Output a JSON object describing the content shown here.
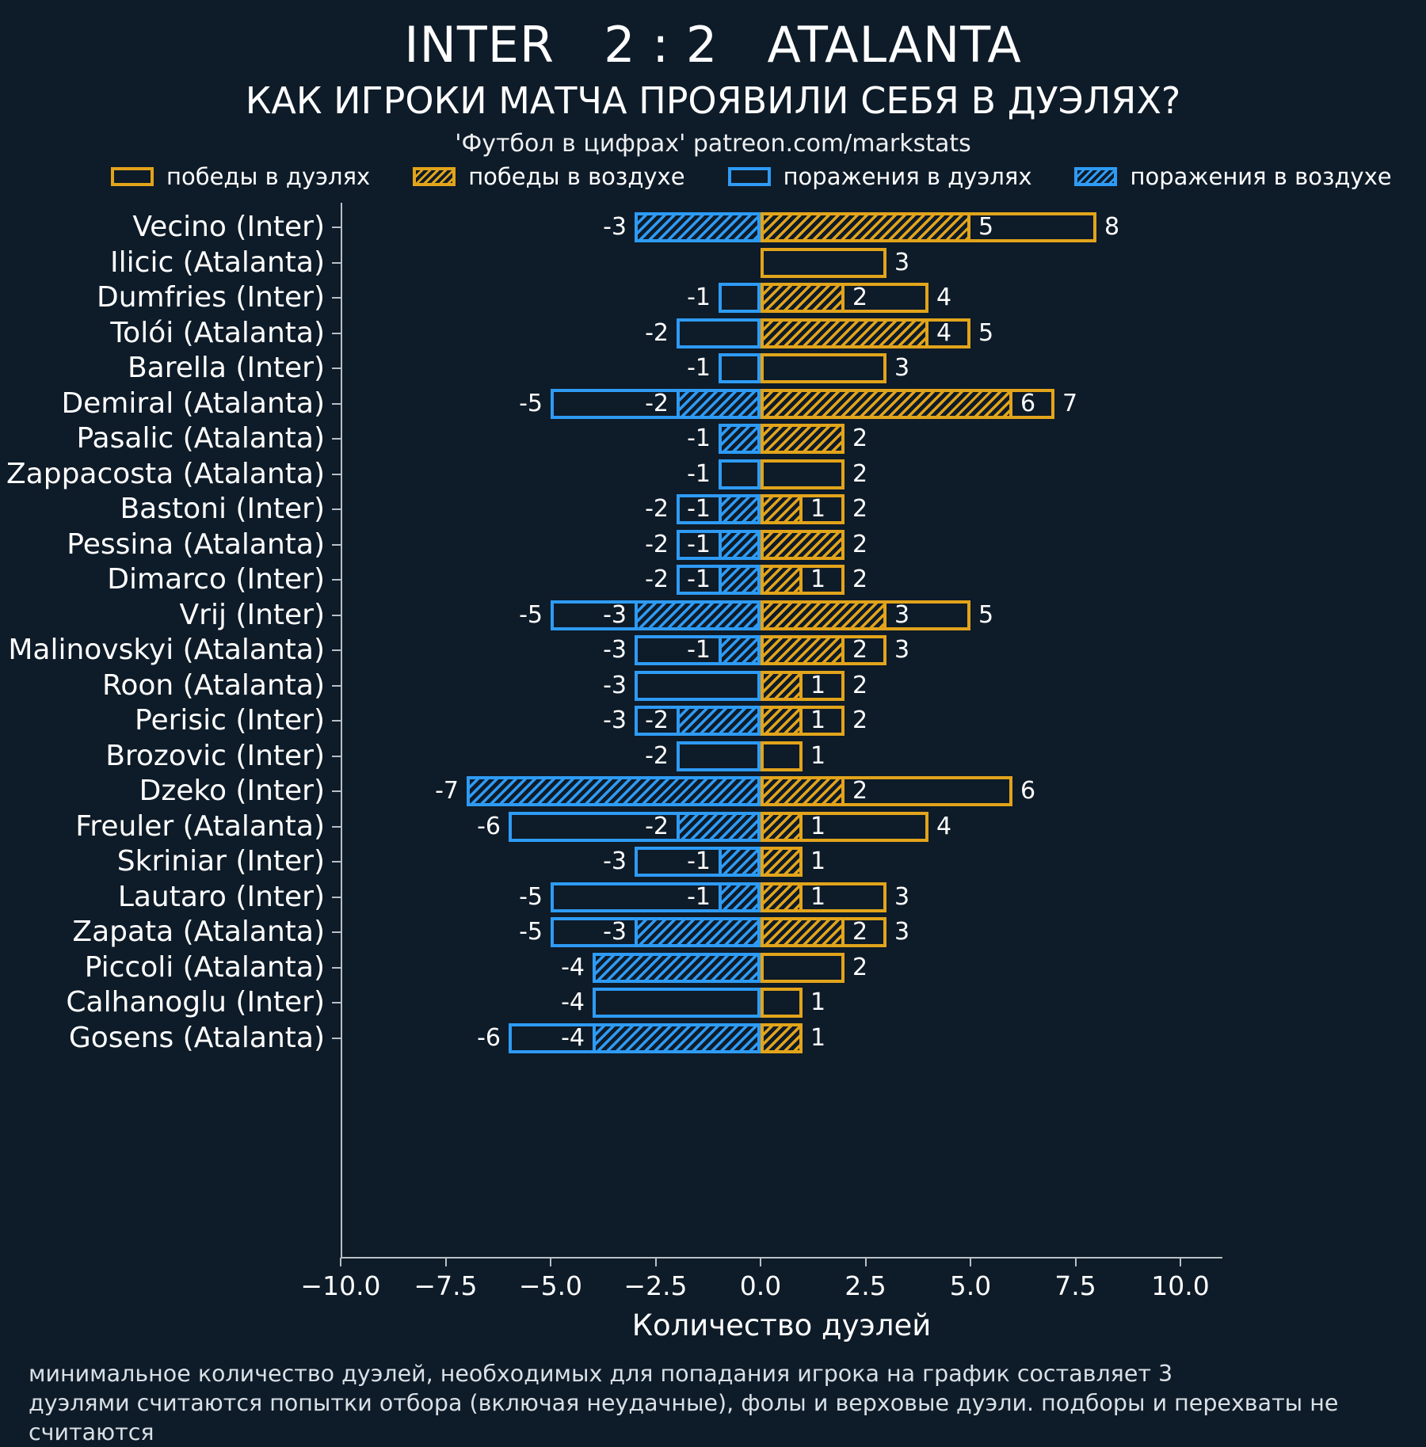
{
  "header": {
    "title": "INTER   2 : 2   ATALANTA",
    "subtitle": "КАК ИГРОКИ МАТЧА ПРОЯВИЛИ СЕБЯ В ДУЭЛЯХ?",
    "credit": "'Футбол в цифрах' patreon.com/markstats"
  },
  "legend": [
    {
      "label": "победы в дуэлях",
      "style": "win-solid"
    },
    {
      "label": "победы в воздухе",
      "style": "win-hatch"
    },
    {
      "label": "поражения в дуэлях",
      "style": "loss-solid"
    },
    {
      "label": "поражения в воздухе",
      "style": "loss-hatch"
    }
  ],
  "colors": {
    "win": "#E2A41B",
    "loss": "#2E9BF5",
    "background": "#0E1B28",
    "axis": "#B9C0C6",
    "text": "#FFFFFF",
    "footnote": "#D9E0E6"
  },
  "chart_data": {
    "type": "bar",
    "orientation": "horizontal",
    "title": "INTER 2 : 2 ATALANTA",
    "subtitle": "КАК ИГРОКИ МАТЧА ПРОЯВИЛИ СЕБЯ В ДУЭЛЯХ?",
    "xlabel": "Количество дуэлей",
    "xlim": [
      -10,
      10
    ],
    "grid": false,
    "legend_position": "top",
    "xticks": [
      {
        "value": -10,
        "label": "−10.0"
      },
      {
        "value": -7.5,
        "label": "−7.5"
      },
      {
        "value": -5,
        "label": "−5.0"
      },
      {
        "value": -2.5,
        "label": "−2.5"
      },
      {
        "value": 0,
        "label": "0.0"
      },
      {
        "value": 2.5,
        "label": "2.5"
      },
      {
        "value": 5,
        "label": "5.0"
      },
      {
        "value": 7.5,
        "label": "7.5"
      },
      {
        "value": 10,
        "label": "10.0"
      }
    ],
    "series_meaning": {
      "wins": "победы в дуэлях",
      "aerial_wins": "победы в воздухе",
      "losses": "поражения в дуэлях",
      "aerial_losses": "поражения в воздухе"
    },
    "players": [
      {
        "name": "Vecino (Inter)",
        "wins": 8,
        "aerial_wins": 5,
        "losses": -3,
        "aerial_losses": -3
      },
      {
        "name": "Ilicic (Atalanta)",
        "wins": 3,
        "aerial_wins": 0,
        "losses": 0,
        "aerial_losses": 0
      },
      {
        "name": "Dumfries (Inter)",
        "wins": 4,
        "aerial_wins": 2,
        "losses": -1,
        "aerial_losses": 0
      },
      {
        "name": "Tolói (Atalanta)",
        "wins": 5,
        "aerial_wins": 4,
        "losses": -2,
        "aerial_losses": 0
      },
      {
        "name": "Barella (Inter)",
        "wins": 3,
        "aerial_wins": 0,
        "losses": -1,
        "aerial_losses": 0
      },
      {
        "name": "Demiral (Atalanta)",
        "wins": 7,
        "aerial_wins": 6,
        "losses": -5,
        "aerial_losses": -2
      },
      {
        "name": "Pasalic (Atalanta)",
        "wins": 2,
        "aerial_wins": 2,
        "losses": -1,
        "aerial_losses": -1
      },
      {
        "name": "Zappacosta (Atalanta)",
        "wins": 2,
        "aerial_wins": 0,
        "losses": -1,
        "aerial_losses": 0
      },
      {
        "name": "Bastoni (Inter)",
        "wins": 2,
        "aerial_wins": 1,
        "losses": -2,
        "aerial_losses": -1
      },
      {
        "name": "Pessina (Atalanta)",
        "wins": 2,
        "aerial_wins": 2,
        "losses": -2,
        "aerial_losses": -1
      },
      {
        "name": "Dimarco (Inter)",
        "wins": 2,
        "aerial_wins": 1,
        "losses": -2,
        "aerial_losses": -1
      },
      {
        "name": "Vrij (Inter)",
        "wins": 5,
        "aerial_wins": 3,
        "losses": -5,
        "aerial_losses": -3
      },
      {
        "name": "Malinovskyi (Atalanta)",
        "wins": 3,
        "aerial_wins": 2,
        "losses": -3,
        "aerial_losses": -1
      },
      {
        "name": "Roon (Atalanta)",
        "wins": 2,
        "aerial_wins": 1,
        "losses": -3,
        "aerial_losses": 0
      },
      {
        "name": "Perisic (Inter)",
        "wins": 2,
        "aerial_wins": 1,
        "losses": -3,
        "aerial_losses": -2
      },
      {
        "name": "Brozovic (Inter)",
        "wins": 1,
        "aerial_wins": 0,
        "losses": -2,
        "aerial_losses": 0
      },
      {
        "name": "Dzeko (Inter)",
        "wins": 6,
        "aerial_wins": 2,
        "losses": -7,
        "aerial_losses": -7
      },
      {
        "name": "Freuler (Atalanta)",
        "wins": 4,
        "aerial_wins": 1,
        "losses": -6,
        "aerial_losses": -2
      },
      {
        "name": "Skriniar (Inter)",
        "wins": 1,
        "aerial_wins": 1,
        "losses": -3,
        "aerial_losses": -1
      },
      {
        "name": "Lautaro (Inter)",
        "wins": 3,
        "aerial_wins": 1,
        "losses": -5,
        "aerial_losses": -1
      },
      {
        "name": "Zapata (Atalanta)",
        "wins": 3,
        "aerial_wins": 2,
        "losses": -5,
        "aerial_losses": -3
      },
      {
        "name": "Piccoli (Atalanta)",
        "wins": 2,
        "aerial_wins": 0,
        "losses": -4,
        "aerial_losses": -4
      },
      {
        "name": "Calhanoglu (Inter)",
        "wins": 1,
        "aerial_wins": 0,
        "losses": -4,
        "aerial_losses": 0
      },
      {
        "name": "Gosens (Atalanta)",
        "wins": 1,
        "aerial_wins": 1,
        "losses": -6,
        "aerial_losses": -4
      }
    ]
  },
  "footnotes": [
    "минимальное количество дуэлей, необходимых для попадания игрока на график составляет 3",
    "дуэлями считаются попытки отбора (включая неудачные), фолы и верховые дуэли. подборы и перехваты не считаются"
  ]
}
